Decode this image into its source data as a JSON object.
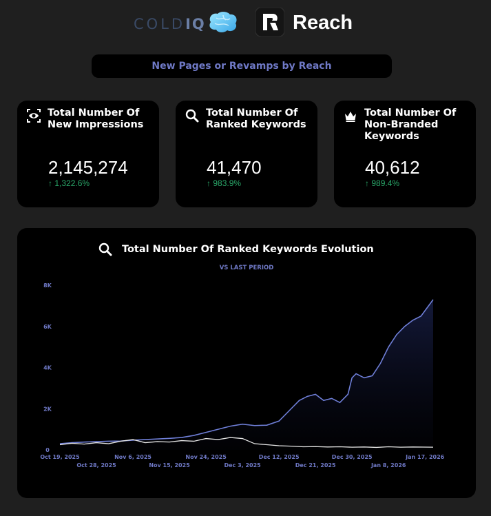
{
  "header": {
    "coldiq_logo_main": "COLD",
    "coldiq_logo_accent": "IQ",
    "reach_logo_text": "Reach"
  },
  "banner": {
    "label": "New Pages or Revamps by Reach"
  },
  "kpis": [
    {
      "icon": "eye-icon",
      "title": "Total Number Of New Impressions",
      "value": "2,145,274",
      "delta": "1,322.6%"
    },
    {
      "icon": "search-icon",
      "title": "Total Number Of Ranked Keywords",
      "value": "41,470",
      "delta": "983.9%"
    },
    {
      "icon": "crown-icon",
      "title": "Total Number Of Non-Branded Keywords",
      "value": "40,612",
      "delta": "989.4%"
    }
  ],
  "chart": {
    "title": "Total Number Of Ranked Keywords Evolution",
    "subtitle": "VS LAST PERIOD"
  },
  "colors": {
    "current_series": "#6f7fd8",
    "previous_series": "#e6e6e6",
    "axis_labels": "#6f79c6",
    "delta_up": "#2aa86a"
  },
  "chart_data": {
    "type": "area",
    "title": "Total Number Of Ranked Keywords Evolution",
    "subtitle": "VS LAST PERIOD",
    "ylim": [
      0,
      8000
    ],
    "yticks": [
      0,
      2000,
      4000,
      6000,
      8000
    ],
    "ytick_labels": [
      "0",
      "2K",
      "4K",
      "6K",
      "8K"
    ],
    "xlim": [
      "2025-10-19",
      "2026-01-19"
    ],
    "xtick_dates": [
      "2025-10-19",
      "2025-10-28",
      "2025-11-06",
      "2025-11-15",
      "2025-11-24",
      "2025-12-03",
      "2025-12-12",
      "2025-12-21",
      "2025-12-30",
      "2026-01-08",
      "2026-01-17"
    ],
    "xtick_labels": [
      "Oct 19, 2025",
      "Oct 28, 2025",
      "Nov 6, 2025",
      "Nov 15, 2025",
      "Nov 24, 2025",
      "Dec 3, 2025",
      "Dec 12, 2025",
      "Dec 21, 2025",
      "Dec 30, 2025",
      "Jan 8, 2026",
      "Jan 17, 2026"
    ],
    "grid": false,
    "legend": "none",
    "series": [
      {
        "x": [
          "2025-10-19",
          "2025-10-22",
          "2025-10-25",
          "2025-10-28",
          "2025-10-31",
          "2025-11-03",
          "2025-11-06",
          "2025-11-09",
          "2025-11-12",
          "2025-11-15",
          "2025-11-18",
          "2025-11-21",
          "2025-11-24",
          "2025-11-27",
          "2025-11-30",
          "2025-12-03",
          "2025-12-06",
          "2025-12-09",
          "2025-12-12",
          "2025-12-15",
          "2025-12-17",
          "2025-12-19",
          "2025-12-21",
          "2025-12-23",
          "2025-12-25",
          "2025-12-27",
          "2025-12-29",
          "2025-12-30",
          "2025-12-31",
          "2026-01-02",
          "2026-01-04",
          "2026-01-06",
          "2026-01-08",
          "2026-01-10",
          "2026-01-12",
          "2026-01-14",
          "2026-01-16",
          "2026-01-19"
        ],
        "values": [
          300,
          350,
          380,
          400,
          420,
          430,
          470,
          500,
          530,
          560,
          600,
          700,
          850,
          1000,
          1150,
          1250,
          1180,
          1200,
          1400,
          2000,
          2400,
          2600,
          2700,
          2400,
          2500,
          2300,
          2700,
          3500,
          3700,
          3500,
          3600,
          4200,
          5000,
          5600,
          6000,
          6300,
          6500,
          7300
        ]
      },
      {
        "x": [
          "2025-10-19",
          "2025-10-22",
          "2025-10-25",
          "2025-10-28",
          "2025-10-31",
          "2025-11-03",
          "2025-11-06",
          "2025-11-09",
          "2025-11-12",
          "2025-11-15",
          "2025-11-18",
          "2025-11-21",
          "2025-11-24",
          "2025-11-27",
          "2025-11-30",
          "2025-12-03",
          "2025-12-06",
          "2025-12-09",
          "2025-12-12",
          "2025-12-15",
          "2025-12-18",
          "2025-12-21",
          "2025-12-24",
          "2025-12-27",
          "2025-12-30",
          "2026-01-02",
          "2026-01-05",
          "2026-01-08",
          "2026-01-11",
          "2026-01-14",
          "2026-01-19"
        ],
        "values": [
          250,
          320,
          280,
          350,
          300,
          420,
          500,
          350,
          400,
          380,
          450,
          420,
          550,
          500,
          600,
          550,
          300,
          250,
          200,
          180,
          150,
          160,
          140,
          150,
          130,
          140,
          120,
          150,
          130,
          140,
          130
        ]
      }
    ]
  }
}
